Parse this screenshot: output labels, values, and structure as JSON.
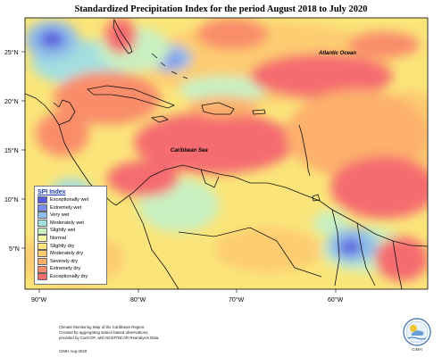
{
  "title": "Standardized Precipitation Index for the period August 2018 to July 2020",
  "map_labels": {
    "atlantic": "Atlantic Ocean",
    "caribbean": "Caribbean Sea"
  },
  "lat_ticks": [
    "25°N",
    "20°N",
    "15°N",
    "10°N",
    "5°N"
  ],
  "lon_ticks": [
    "90°W",
    "80°W",
    "70°W",
    "60°W"
  ],
  "legend": {
    "title": "SPI Index",
    "items": [
      {
        "label": "Exceptionally wet",
        "color": "#5a5adf"
      },
      {
        "label": "Extremely wet",
        "color": "#7d8cef"
      },
      {
        "label": "Very wet",
        "color": "#8fbde9"
      },
      {
        "label": "Moderately wet",
        "color": "#a4dfe0"
      },
      {
        "label": "Slightly wet",
        "color": "#c9f0c1"
      },
      {
        "label": "Normal",
        "color": "#f7f7a9"
      },
      {
        "label": "Slightly dry",
        "color": "#fbe57a"
      },
      {
        "label": "Moderately dry",
        "color": "#fdcc71"
      },
      {
        "label": "Severely dry",
        "color": "#fcb06c"
      },
      {
        "label": "Extremely dry",
        "color": "#f98d6a"
      },
      {
        "label": "Exceptionally dry",
        "color": "#f56c6f"
      }
    ]
  },
  "footer": {
    "line1": "Climate Monitoring Map of the Caribbean Region.",
    "line2": "Created by aggregating station based observations,",
    "line3": "provided by CariCOF, with NCEP/NCAR Reanalysis Data.",
    "credit": "CIMH Aug-2020"
  },
  "logo_text": "CIMH"
}
